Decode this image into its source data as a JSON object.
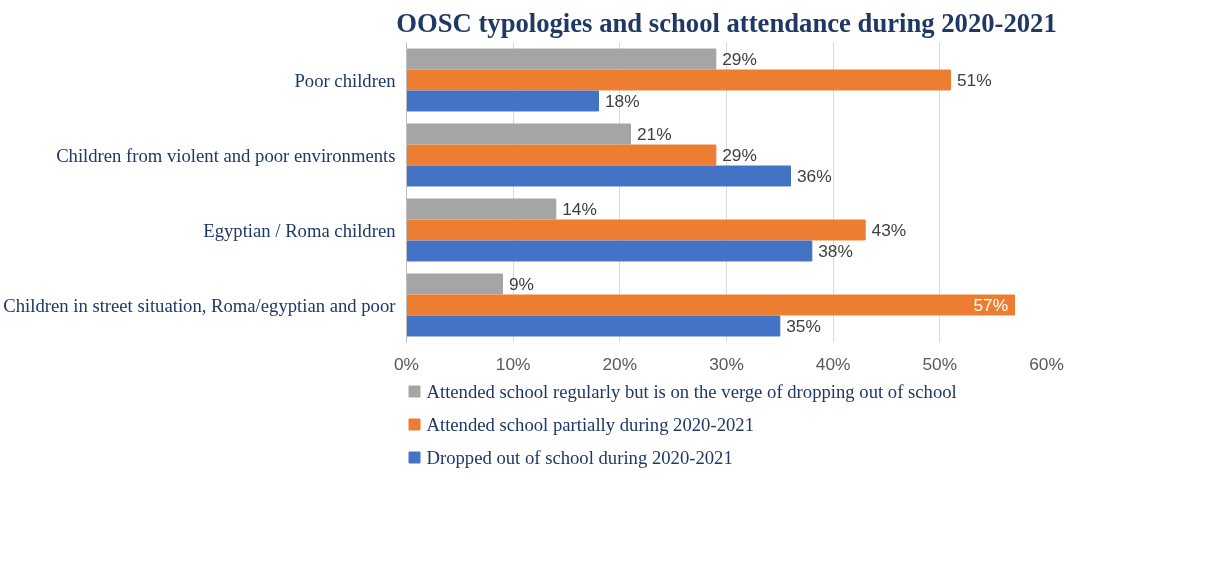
{
  "chart_data": {
    "type": "bar",
    "orientation": "horizontal",
    "title": "OOSC typologies and school attendance during 2020-2021",
    "categories": [
      "Poor children",
      "Children from violent and poor environments",
      "Egyptian / Roma children",
      "Children in street situation, Roma/egyptian and poor"
    ],
    "series": [
      {
        "name": "Attended school regularly but is on the verge of dropping out of school",
        "color": "#a5a5a5",
        "values": [
          29,
          21,
          14,
          9
        ],
        "value_labels": [
          "29%",
          "21%",
          "14%",
          "9%"
        ]
      },
      {
        "name": "Attended school partially during 2020-2021",
        "color": "#ed7d31",
        "values": [
          51,
          29,
          43,
          57
        ],
        "value_labels": [
          "51%",
          "29%",
          "43%",
          "57%"
        ]
      },
      {
        "name": "Dropped out of school during 2020-2021",
        "color": "#4472c4",
        "values": [
          18,
          36,
          38,
          35
        ],
        "value_labels": [
          "18%",
          "36%",
          "38%",
          "35%"
        ]
      }
    ],
    "xlim": [
      0,
      60
    ],
    "xticks": [
      {
        "value": 0,
        "label": "0%"
      },
      {
        "value": 10,
        "label": "10%"
      },
      {
        "value": 20,
        "label": "20%"
      },
      {
        "value": 30,
        "label": "30%"
      },
      {
        "value": 40,
        "label": "40%"
      },
      {
        "value": 50,
        "label": "50%"
      },
      {
        "value": 60,
        "label": "60%"
      }
    ],
    "grid": "x",
    "legend": "bottom"
  }
}
